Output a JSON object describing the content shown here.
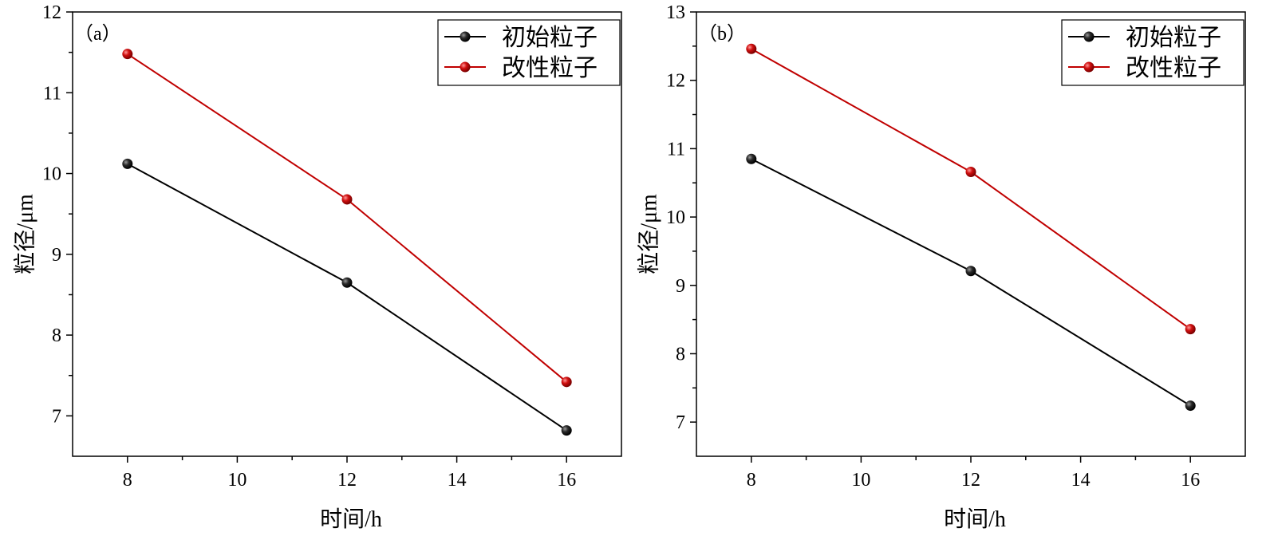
{
  "chart_data": [
    {
      "type": "line",
      "panel_label": "（a）",
      "x": [
        8,
        12,
        16
      ],
      "series": [
        {
          "name": "初始粒子",
          "color": "#000000",
          "values": [
            10.12,
            8.65,
            6.82
          ]
        },
        {
          "name": "改性粒子",
          "color": "#c00000",
          "values": [
            11.48,
            9.68,
            7.42
          ]
        }
      ],
      "xlabel": "时间/h",
      "ylabel": "粒径/μm",
      "xlim": [
        7,
        17
      ],
      "ylim": [
        6.5,
        12
      ],
      "xticks": [
        8,
        10,
        12,
        14,
        16
      ],
      "yticks": [
        7,
        8,
        9,
        10,
        11,
        12
      ],
      "legend": "top-right",
      "grid": false
    },
    {
      "type": "line",
      "panel_label": "（b）",
      "x": [
        8,
        12,
        16
      ],
      "series": [
        {
          "name": "初始粒子",
          "color": "#000000",
          "values": [
            10.85,
            9.21,
            7.24
          ]
        },
        {
          "name": "改性粒子",
          "color": "#c00000",
          "values": [
            12.46,
            10.66,
            8.36
          ]
        }
      ],
      "xlabel": "时间/h",
      "ylabel": "粒径/μm",
      "xlim": [
        7,
        17
      ],
      "ylim": [
        6.5,
        13
      ],
      "xticks": [
        8,
        10,
        12,
        14,
        16
      ],
      "yticks": [
        7,
        8,
        9,
        10,
        11,
        12,
        13
      ],
      "legend": "top-right",
      "grid": false
    }
  ]
}
